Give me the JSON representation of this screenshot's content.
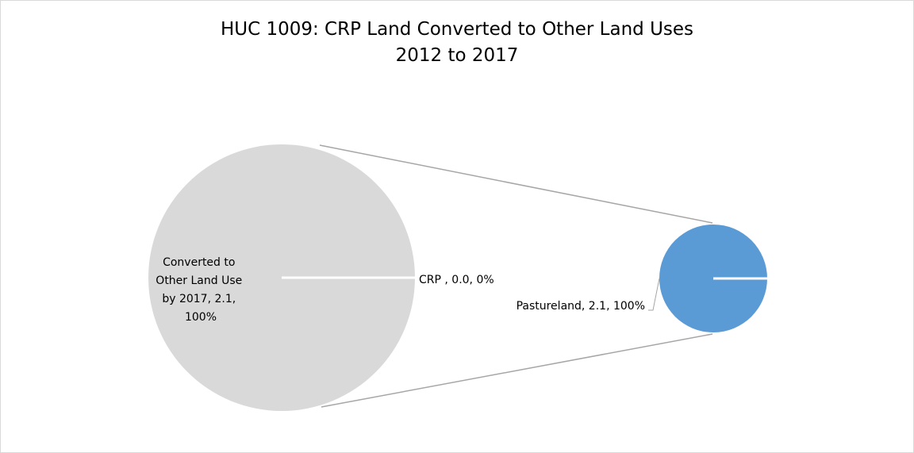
{
  "chart_data": {
    "type": "pie",
    "title_line1": "HUC 1009: CRP Land Converted to Other Land Uses",
    "title_line2": "2012 to 2017",
    "primary_pie": {
      "slices": [
        {
          "label": "CRP ",
          "value": 0.0,
          "percent": "0%",
          "data_label": "CRP , 0.0, 0%",
          "color": "#4472c4"
        },
        {
          "label": "Converted to Other Land Use by 2017",
          "value": 2.1,
          "percent": "100%",
          "data_label_lines": [
            "Converted to",
            "Other Land Use",
            "by 2017, 2.1,",
            "100%"
          ],
          "color": "#d9d9d9"
        }
      ]
    },
    "secondary_pie": {
      "slices": [
        {
          "label": "Pastureland",
          "value": 2.1,
          "percent": "100%",
          "data_label": "Pastureland, 2.1, 100%",
          "color": "#5b9bd5"
        }
      ]
    },
    "connector_color": "#a6a6a6"
  }
}
